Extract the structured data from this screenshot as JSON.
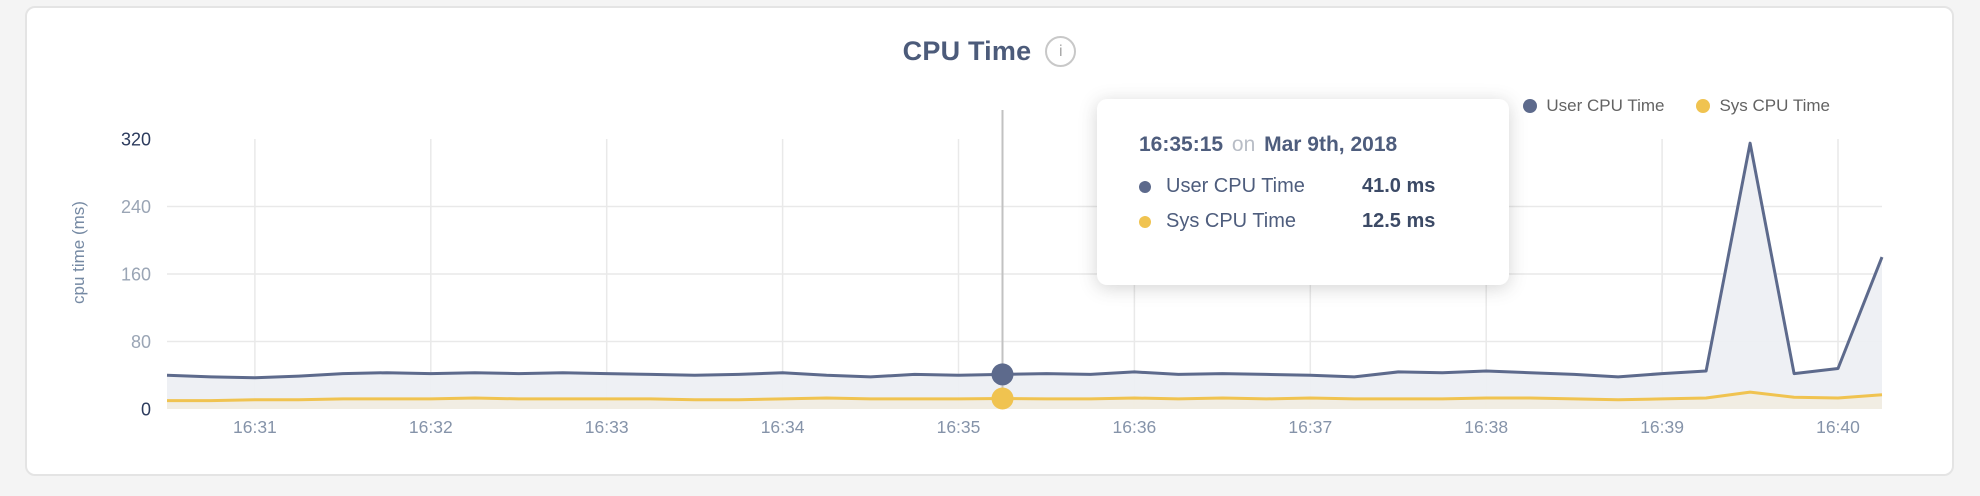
{
  "card": {
    "title": "CPU Time",
    "info_icon": "i"
  },
  "legend": [
    {
      "label": "User CPU Time",
      "color": "#5d6a8c"
    },
    {
      "label": "Sys CPU Time",
      "color": "#f0c350"
    }
  ],
  "tooltip": {
    "time": "16:35:15",
    "conjunction": "on",
    "date": "Mar 9th, 2018",
    "rows": [
      {
        "label": "User CPU Time",
        "value": "41.0 ms",
        "color": "#5d6a8c"
      },
      {
        "label": "Sys CPU Time",
        "value": "12.5 ms",
        "color": "#f0c350"
      }
    ]
  },
  "chart_data": {
    "type": "area",
    "title": "CPU Time",
    "ylabel": "cpu time (ms)",
    "ylim": [
      0,
      320
    ],
    "yticks": [
      0,
      80,
      160,
      240,
      320
    ],
    "xticks": [
      "16:31",
      "16:32",
      "16:33",
      "16:34",
      "16:35",
      "16:36",
      "16:37",
      "16:38",
      "16:39",
      "16:40"
    ],
    "grid": true,
    "legend_position": "top-right",
    "hover": {
      "time": "16:35:15",
      "values": [
        41.0,
        12.5
      ]
    },
    "series": [
      {
        "name": "User CPU Time",
        "color": "#5d6a8c",
        "fill": "#edeff3",
        "points": [
          [
            "16:30:30",
            40
          ],
          [
            "16:30:45",
            38
          ],
          [
            "16:31:00",
            37
          ],
          [
            "16:31:15",
            39
          ],
          [
            "16:31:30",
            42
          ],
          [
            "16:31:45",
            43
          ],
          [
            "16:32:00",
            42
          ],
          [
            "16:32:15",
            43
          ],
          [
            "16:32:30",
            42
          ],
          [
            "16:32:45",
            43
          ],
          [
            "16:33:00",
            42
          ],
          [
            "16:33:15",
            41
          ],
          [
            "16:33:30",
            40
          ],
          [
            "16:33:45",
            41
          ],
          [
            "16:34:00",
            43
          ],
          [
            "16:34:15",
            40
          ],
          [
            "16:34:30",
            38
          ],
          [
            "16:34:45",
            41
          ],
          [
            "16:35:00",
            40
          ],
          [
            "16:35:15",
            41
          ],
          [
            "16:35:30",
            42
          ],
          [
            "16:35:45",
            41
          ],
          [
            "16:36:00",
            44
          ],
          [
            "16:36:15",
            41
          ],
          [
            "16:36:30",
            42
          ],
          [
            "16:36:45",
            41
          ],
          [
            "16:37:00",
            40
          ],
          [
            "16:37:15",
            38
          ],
          [
            "16:37:30",
            44
          ],
          [
            "16:37:45",
            43
          ],
          [
            "16:38:00",
            45
          ],
          [
            "16:38:15",
            43
          ],
          [
            "16:38:30",
            41
          ],
          [
            "16:38:45",
            38
          ],
          [
            "16:39:00",
            42
          ],
          [
            "16:39:15",
            45
          ],
          [
            "16:39:30",
            315
          ],
          [
            "16:39:45",
            42
          ],
          [
            "16:40:00",
            48
          ],
          [
            "16:40:15",
            180
          ]
        ]
      },
      {
        "name": "Sys CPU Time",
        "color": "#f0c350",
        "fill": "#f1ede1",
        "points": [
          [
            "16:30:30",
            10
          ],
          [
            "16:30:45",
            10
          ],
          [
            "16:31:00",
            11
          ],
          [
            "16:31:15",
            11
          ],
          [
            "16:31:30",
            12
          ],
          [
            "16:31:45",
            12
          ],
          [
            "16:32:00",
            12
          ],
          [
            "16:32:15",
            13
          ],
          [
            "16:32:30",
            12
          ],
          [
            "16:32:45",
            12
          ],
          [
            "16:33:00",
            12
          ],
          [
            "16:33:15",
            12
          ],
          [
            "16:33:30",
            11
          ],
          [
            "16:33:45",
            11
          ],
          [
            "16:34:00",
            12
          ],
          [
            "16:34:15",
            13
          ],
          [
            "16:34:30",
            12
          ],
          [
            "16:34:45",
            12
          ],
          [
            "16:35:00",
            12
          ],
          [
            "16:35:15",
            12.5
          ],
          [
            "16:35:30",
            12
          ],
          [
            "16:35:45",
            12
          ],
          [
            "16:36:00",
            13
          ],
          [
            "16:36:15",
            12
          ],
          [
            "16:36:30",
            13
          ],
          [
            "16:36:45",
            12
          ],
          [
            "16:37:00",
            13
          ],
          [
            "16:37:15",
            12
          ],
          [
            "16:37:30",
            12
          ],
          [
            "16:37:45",
            12
          ],
          [
            "16:38:00",
            13
          ],
          [
            "16:38:15",
            13
          ],
          [
            "16:38:30",
            12
          ],
          [
            "16:38:45",
            11
          ],
          [
            "16:39:00",
            12
          ],
          [
            "16:39:15",
            13
          ],
          [
            "16:39:30",
            20
          ],
          [
            "16:39:45",
            14
          ],
          [
            "16:40:00",
            13
          ],
          [
            "16:40:15",
            17
          ]
        ]
      }
    ]
  }
}
